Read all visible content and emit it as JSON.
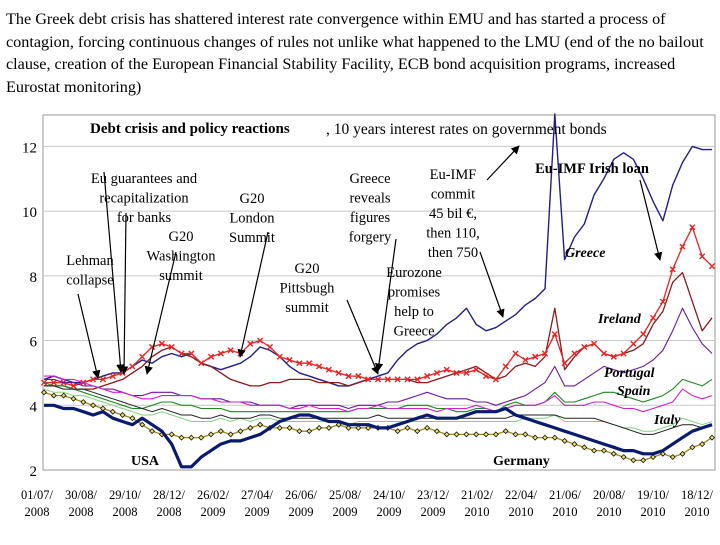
{
  "slide": {
    "text": "The Greek debt crisis has shattered interest rate convergence within EMU and has started a process of contagion, forcing continuous changes of rules not unlike what happened to the LMU (end of the no bailout clause, creation of the European Financial Stability Facility, ECB bond acquisition programs, increased Eurostat monitoring)"
  },
  "chart_data": {
    "type": "line",
    "title": "Debt crisis and policy reactions",
    "subtitle": ", 10 years interest rates on government bonds",
    "xlabel": "",
    "ylabel": "",
    "ylim": [
      2,
      13
    ],
    "yticks": [
      2,
      4,
      6,
      8,
      10,
      12
    ],
    "xticks": [
      [
        "01/07/",
        "2008"
      ],
      [
        "30/08/",
        "2008"
      ],
      [
        "29/10/",
        "2008"
      ],
      [
        "28/12/",
        "2008"
      ],
      [
        "26/02/",
        "2009"
      ],
      [
        "27/04/",
        "2009"
      ],
      [
        "26/06/",
        "2009"
      ],
      [
        "25/08/",
        "2009"
      ],
      [
        "24/10/",
        "2009"
      ],
      [
        "23/12/",
        "2009"
      ],
      [
        "21/02/",
        "2010"
      ],
      [
        "22/04/",
        "2010"
      ],
      [
        "21/06/",
        "2010"
      ],
      [
        "20/08/",
        "2010"
      ],
      [
        "19/10/",
        "2010"
      ],
      [
        "18/12/",
        "2010"
      ]
    ],
    "grid": "horizontal",
    "legend": "none",
    "series": [
      {
        "name": "Greece",
        "color": "#1f1f8c",
        "marker": "none",
        "width": 1.4,
        "values": [
          4.8,
          4.9,
          4.8,
          4.7,
          4.7,
          4.8,
          4.9,
          5.0,
          5.0,
          5.2,
          5.4,
          5.3,
          5.5,
          5.6,
          5.5,
          5.6,
          5.3,
          5.2,
          5.1,
          5.2,
          5.3,
          5.5,
          5.8,
          5.7,
          5.5,
          5.2,
          5.0,
          4.9,
          4.8,
          4.7,
          4.6,
          4.6,
          4.7,
          4.8,
          4.9,
          5.0,
          5.4,
          5.7,
          5.9,
          6.0,
          6.2,
          6.5,
          6.7,
          7.0,
          6.5,
          6.3,
          6.4,
          6.6,
          6.8,
          7.1,
          7.3,
          7.6,
          13.0,
          8.5,
          9.2,
          9.6,
          10.5,
          11.0,
          11.6,
          11.8,
          11.6,
          11.0,
          10.3,
          9.7,
          10.8,
          11.5,
          12.0,
          11.9,
          11.9
        ]
      },
      {
        "name": "Ireland",
        "color": "#8b1a1a",
        "marker": "none",
        "width": 1.3,
        "values": [
          4.6,
          4.6,
          4.6,
          4.5,
          4.5,
          4.5,
          4.6,
          4.7,
          4.8,
          5.0,
          5.2,
          5.5,
          5.7,
          5.8,
          5.6,
          5.5,
          5.3,
          5.2,
          5.0,
          4.8,
          4.7,
          4.6,
          4.6,
          4.7,
          4.7,
          4.8,
          4.8,
          4.8,
          4.7,
          4.7,
          4.7,
          4.6,
          4.7,
          4.8,
          4.8,
          4.8,
          4.8,
          4.8,
          4.7,
          4.7,
          4.8,
          4.9,
          5.0,
          5.1,
          5.2,
          5.0,
          4.8,
          4.9,
          5.2,
          5.3,
          5.2,
          5.5,
          7.0,
          5.1,
          5.5,
          5.8,
          5.9,
          5.6,
          5.5,
          5.6,
          5.7,
          5.9,
          6.5,
          6.9,
          7.8,
          8.1,
          7.2,
          6.3,
          6.7
        ]
      },
      {
        "name": "Ireland (markers)",
        "color": "#ee2222",
        "marker": "x",
        "width": 1.3,
        "values": [
          4.7,
          4.7,
          4.7,
          4.6,
          4.7,
          4.8,
          4.8,
          4.9,
          5.0,
          5.2,
          5.5,
          5.8,
          5.9,
          5.8,
          5.6,
          5.6,
          5.3,
          5.5,
          5.6,
          5.7,
          5.6,
          5.9,
          6.0,
          5.8,
          5.5,
          5.4,
          5.3,
          5.3,
          5.2,
          5.1,
          5.0,
          4.9,
          4.9,
          4.8,
          4.8,
          4.8,
          4.8,
          4.8,
          4.8,
          4.9,
          5.0,
          5.1,
          5.0,
          5.0,
          5.1,
          4.9,
          4.8,
          5.2,
          5.6,
          5.4,
          5.5,
          5.6,
          6.2,
          5.3,
          5.6,
          5.8,
          5.9,
          5.6,
          5.5,
          5.6,
          5.9,
          6.2,
          6.7,
          7.2,
          8.2,
          8.9,
          9.5,
          8.6,
          8.3
        ]
      },
      {
        "name": "Portugal",
        "color": "#6a1b9a",
        "marker": "none",
        "width": 1.1,
        "values": [
          4.8,
          4.8,
          4.7,
          4.7,
          4.6,
          4.6,
          4.5,
          4.5,
          4.4,
          4.3,
          4.3,
          4.4,
          4.4,
          4.4,
          4.3,
          4.3,
          4.2,
          4.2,
          4.2,
          4.1,
          4.1,
          4.1,
          4.0,
          4.0,
          4.0,
          3.9,
          4.0,
          4.0,
          4.0,
          4.0,
          4.0,
          3.9,
          4.0,
          4.0,
          4.0,
          4.1,
          4.1,
          4.2,
          4.3,
          4.4,
          4.3,
          4.2,
          4.2,
          4.2,
          4.1,
          4.1,
          4.0,
          4.1,
          4.2,
          4.3,
          4.5,
          4.7,
          5.2,
          4.6,
          4.6,
          4.8,
          5.0,
          5.2,
          5.1,
          5.0,
          5.1,
          5.2,
          5.4,
          5.7,
          6.3,
          7.0,
          6.4,
          5.9,
          5.6
        ]
      },
      {
        "name": "Spain",
        "color": "#1e8a1e",
        "marker": "none",
        "width": 1.1,
        "values": [
          4.7,
          4.6,
          4.6,
          4.5,
          4.4,
          4.3,
          4.2,
          4.1,
          4.0,
          3.9,
          3.9,
          4.0,
          4.1,
          4.1,
          4.0,
          4.0,
          3.9,
          3.9,
          3.9,
          3.8,
          3.8,
          3.8,
          3.8,
          3.8,
          3.8,
          3.8,
          3.8,
          3.8,
          3.8,
          3.8,
          3.8,
          3.8,
          3.9,
          3.9,
          3.9,
          3.9,
          3.9,
          4.0,
          4.0,
          4.0,
          3.9,
          3.9,
          3.8,
          3.8,
          3.9,
          3.9,
          3.8,
          4.0,
          4.1,
          4.0,
          4.0,
          4.1,
          4.4,
          4.1,
          4.1,
          4.2,
          4.3,
          4.4,
          4.4,
          4.3,
          4.2,
          4.1,
          4.2,
          4.3,
          4.5,
          4.8,
          4.7,
          4.6,
          4.8
        ]
      },
      {
        "name": "Italy",
        "color": "#d020d0",
        "marker": "none",
        "width": 1.1,
        "values": [
          4.9,
          4.9,
          4.8,
          4.8,
          4.7,
          4.6,
          4.5,
          4.4,
          4.4,
          4.3,
          4.2,
          4.2,
          4.3,
          4.3,
          4.3,
          4.3,
          4.2,
          4.2,
          4.1,
          4.1,
          4.1,
          4.0,
          4.0,
          4.0,
          4.0,
          3.9,
          3.9,
          4.0,
          3.9,
          3.9,
          3.9,
          3.8,
          3.9,
          3.9,
          4.0,
          3.9,
          3.9,
          3.9,
          3.9,
          3.9,
          3.8,
          3.9,
          3.9,
          3.9,
          4.0,
          3.9,
          3.8,
          3.9,
          4.0,
          4.0,
          4.0,
          4.1,
          4.3,
          4.0,
          4.0,
          4.0,
          4.1,
          4.1,
          4.0,
          3.9,
          3.9,
          3.8,
          3.9,
          4.0,
          4.1,
          4.5,
          4.3,
          4.2,
          4.3
        ]
      },
      {
        "name": "",
        "color": "#7fd47f",
        "marker": "none",
        "width": 1.0,
        "values": [
          4.5,
          4.4,
          4.4,
          4.3,
          4.3,
          4.2,
          4.1,
          4.0,
          3.9,
          3.8,
          3.7,
          3.7,
          3.8,
          3.7,
          3.6,
          3.5,
          3.5,
          3.5,
          3.6,
          3.5,
          3.6,
          3.5,
          3.6,
          3.6,
          3.5,
          3.5,
          3.5,
          3.5,
          3.5,
          3.5,
          3.5,
          3.4,
          3.5,
          3.5,
          3.5,
          3.5,
          3.5,
          3.5,
          3.5,
          3.5,
          3.5,
          3.5,
          3.5,
          3.5,
          3.5,
          3.5,
          3.5,
          3.5,
          3.5,
          3.6,
          3.6,
          3.6,
          3.7,
          3.5,
          3.5,
          3.5,
          3.5,
          3.5,
          3.4,
          3.3,
          3.3,
          3.2,
          3.2,
          3.3,
          3.4,
          3.6,
          3.5,
          3.4,
          3.5
        ]
      },
      {
        "name": "",
        "color": "#222222",
        "marker": "none",
        "width": 1.0,
        "values": [
          4.6,
          4.6,
          4.5,
          4.5,
          4.5,
          4.4,
          4.3,
          4.2,
          4.1,
          4.0,
          3.9,
          3.8,
          3.9,
          3.8,
          3.7,
          3.7,
          3.6,
          3.6,
          3.7,
          3.6,
          3.6,
          3.6,
          3.7,
          3.7,
          3.6,
          3.6,
          3.6,
          3.6,
          3.6,
          3.6,
          3.6,
          3.6,
          3.6,
          3.6,
          3.7,
          3.6,
          3.6,
          3.6,
          3.6,
          3.6,
          3.6,
          3.6,
          3.6,
          3.6,
          3.6,
          3.6,
          3.6,
          3.6,
          3.7,
          3.7,
          3.7,
          3.7,
          3.7,
          3.6,
          3.6,
          3.6,
          3.6,
          3.5,
          3.4,
          3.3,
          3.2,
          3.1,
          3.1,
          3.2,
          3.3,
          3.4,
          3.4,
          3.3,
          3.4
        ]
      },
      {
        "name": "Germany",
        "color": "#9a8a20",
        "marker": "diamond",
        "width": 1.3,
        "values": [
          4.4,
          4.3,
          4.3,
          4.2,
          4.1,
          4.0,
          3.9,
          3.8,
          3.7,
          3.6,
          3.4,
          3.2,
          3.1,
          3.1,
          3.0,
          3.0,
          3.0,
          3.1,
          3.2,
          3.1,
          3.2,
          3.3,
          3.4,
          3.3,
          3.3,
          3.3,
          3.2,
          3.2,
          3.3,
          3.3,
          3.4,
          3.3,
          3.3,
          3.3,
          3.3,
          3.3,
          3.2,
          3.3,
          3.2,
          3.3,
          3.2,
          3.1,
          3.1,
          3.1,
          3.1,
          3.1,
          3.1,
          3.2,
          3.1,
          3.1,
          3.0,
          3.0,
          3.0,
          2.9,
          2.8,
          2.7,
          2.6,
          2.6,
          2.5,
          2.4,
          2.3,
          2.3,
          2.4,
          2.5,
          2.4,
          2.5,
          2.7,
          2.8,
          3.0
        ]
      },
      {
        "name": "USA",
        "color": "#0a1a6e",
        "marker": "none",
        "width": 3.2,
        "values": [
          4.0,
          4.0,
          3.9,
          3.9,
          3.8,
          3.7,
          3.8,
          3.6,
          3.5,
          3.4,
          3.6,
          3.4,
          3.2,
          2.8,
          2.1,
          2.1,
          2.4,
          2.6,
          2.8,
          2.9,
          2.9,
          3.0,
          3.1,
          3.3,
          3.5,
          3.6,
          3.7,
          3.7,
          3.6,
          3.5,
          3.5,
          3.4,
          3.4,
          3.4,
          3.3,
          3.3,
          3.4,
          3.5,
          3.6,
          3.7,
          3.6,
          3.6,
          3.6,
          3.7,
          3.8,
          3.8,
          3.8,
          3.9,
          3.7,
          3.6,
          3.5,
          3.4,
          3.3,
          3.2,
          3.1,
          3.0,
          2.9,
          2.8,
          2.7,
          2.6,
          2.6,
          2.5,
          2.5,
          2.6,
          2.8,
          3.0,
          3.2,
          3.3,
          3.4
        ]
      }
    ],
    "annotations": [
      {
        "id": "lehman",
        "lines": [
          "Lehman",
          "collapse"
        ]
      },
      {
        "id": "eu-guarantees",
        "lines": [
          "Eu guarantees and",
          "recapitalization",
          "for banks"
        ]
      },
      {
        "id": "g20-washington",
        "lines": [
          "G20",
          "Washington",
          "summit"
        ]
      },
      {
        "id": "g20-london",
        "lines": [
          "G20",
          "London",
          "Summit"
        ]
      },
      {
        "id": "g20-pittsburgh",
        "lines": [
          "G20",
          "Pittsbugh",
          "summit"
        ]
      },
      {
        "id": "greece-forgery",
        "lines": [
          "Greece",
          "reveals",
          "figures",
          "forgery"
        ]
      },
      {
        "id": "eu-imf-commit",
        "lines": [
          "Eu-IMF",
          "commit",
          "45 bil €,",
          "then 110,",
          "then 750"
        ]
      },
      {
        "id": "eurozone-help",
        "lines": [
          "Eurozone",
          "promises",
          "help to",
          "Greece"
        ]
      },
      {
        "id": "eu-imf-irish",
        "lines": [
          "Eu-IMF Irish loan"
        ]
      }
    ],
    "series_labels": [
      "Greece",
      "Ireland",
      "Portugal",
      "Spain",
      "Italy",
      "USA",
      "Germany"
    ]
  }
}
